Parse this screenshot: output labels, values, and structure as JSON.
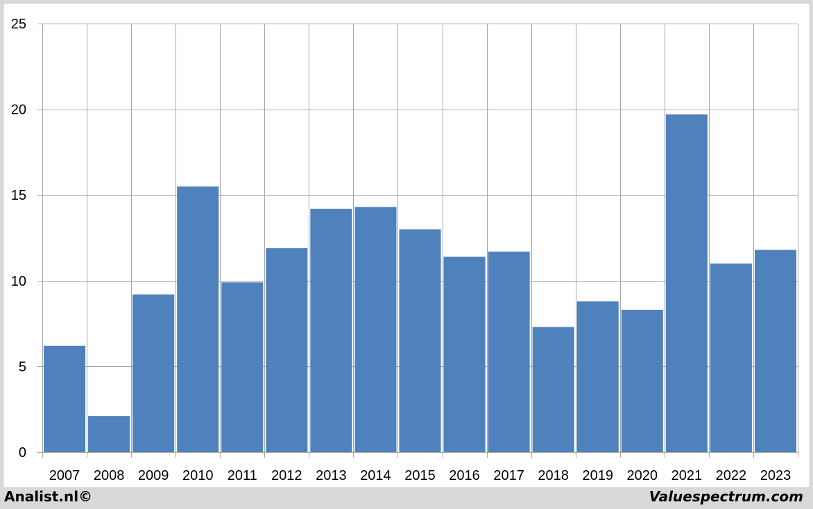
{
  "chart_data": {
    "type": "bar",
    "categories": [
      "2007",
      "2008",
      "2009",
      "2010",
      "2011",
      "2012",
      "2013",
      "2014",
      "2015",
      "2016",
      "2017",
      "2018",
      "2019",
      "2020",
      "2021",
      "2022",
      "2023"
    ],
    "values": [
      6.2,
      2.1,
      9.2,
      15.5,
      9.9,
      11.9,
      14.2,
      14.3,
      13.0,
      11.4,
      11.7,
      7.3,
      8.8,
      8.3,
      19.7,
      11.0,
      11.8
    ],
    "title": "",
    "xlabel": "",
    "ylabel": "",
    "ylim": [
      0,
      25
    ],
    "yticks": [
      0,
      5,
      10,
      15,
      20,
      25
    ],
    "grid": true,
    "legend": "none",
    "bar_color": "#4f81bd",
    "grid_color": "#a6a6a6"
  },
  "footer": {
    "left": "Analist.nl©",
    "right": "Valuespectrum.com"
  }
}
